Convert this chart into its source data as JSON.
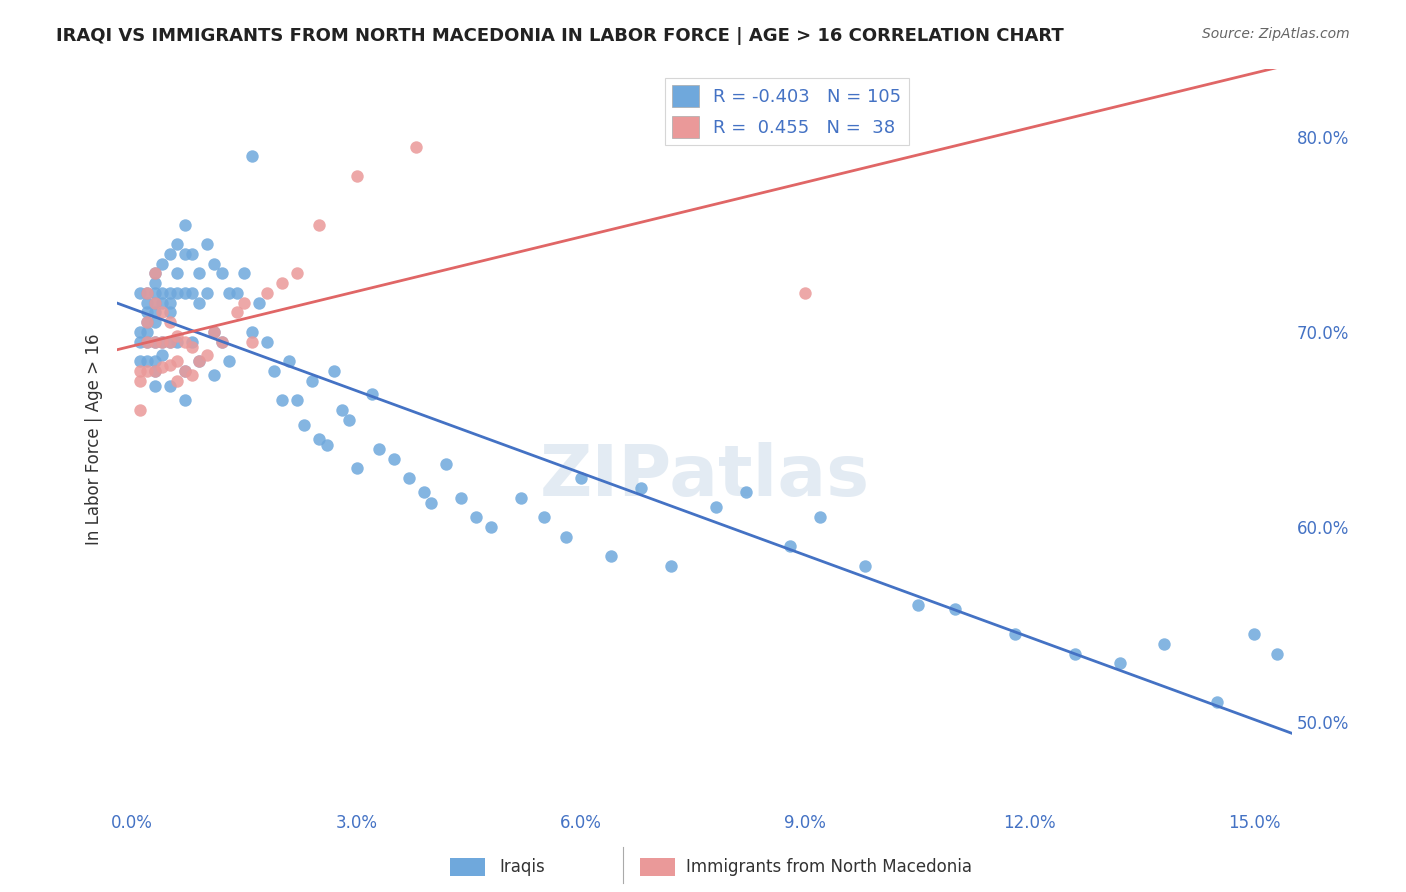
{
  "title": "IRAQI VS IMMIGRANTS FROM NORTH MACEDONIA IN LABOR FORCE | AGE > 16 CORRELATION CHART",
  "source": "Source: ZipAtlas.com",
  "xlabel_ticks": [
    "0.0%",
    "3.0%",
    "6.0%",
    "9.0%",
    "12.0%",
    "15.0%"
  ],
  "xlabel_vals": [
    0.0,
    0.03,
    0.06,
    0.09,
    0.12,
    0.15
  ],
  "ylabel_ticks": [
    "50.0%",
    "60.0%",
    "70.0%",
    "80.0%"
  ],
  "ylabel_vals": [
    0.5,
    0.6,
    0.7,
    0.8
  ],
  "ylabel_label": "In Labor Force | Age > 16",
  "xlim": [
    -0.002,
    0.155
  ],
  "ylim": [
    0.455,
    0.835
  ],
  "legend_iraqis_r": "-0.403",
  "legend_iraqis_n": "105",
  "legend_macedonians_r": "0.455",
  "legend_macedonians_n": "38",
  "iraqis_color": "#6fa8dc",
  "macedonians_color": "#ea9999",
  "iraqis_line_color": "#4472c4",
  "macedonians_line_color": "#e06666",
  "watermark": "ZIPatlas",
  "iraqis_x": [
    0.001,
    0.001,
    0.001,
    0.001,
    0.002,
    0.002,
    0.002,
    0.002,
    0.002,
    0.002,
    0.002,
    0.003,
    0.003,
    0.003,
    0.003,
    0.003,
    0.003,
    0.003,
    0.003,
    0.003,
    0.003,
    0.004,
    0.004,
    0.004,
    0.004,
    0.004,
    0.005,
    0.005,
    0.005,
    0.005,
    0.005,
    0.005,
    0.006,
    0.006,
    0.006,
    0.006,
    0.007,
    0.007,
    0.007,
    0.007,
    0.007,
    0.008,
    0.008,
    0.008,
    0.009,
    0.009,
    0.009,
    0.01,
    0.01,
    0.011,
    0.011,
    0.011,
    0.012,
    0.012,
    0.013,
    0.013,
    0.014,
    0.015,
    0.016,
    0.016,
    0.017,
    0.018,
    0.019,
    0.02,
    0.021,
    0.022,
    0.023,
    0.024,
    0.025,
    0.026,
    0.027,
    0.028,
    0.029,
    0.03,
    0.032,
    0.033,
    0.035,
    0.037,
    0.039,
    0.04,
    0.042,
    0.044,
    0.046,
    0.048,
    0.052,
    0.055,
    0.058,
    0.06,
    0.064,
    0.068,
    0.072,
    0.078,
    0.082,
    0.088,
    0.092,
    0.098,
    0.105,
    0.11,
    0.118,
    0.126,
    0.132,
    0.138,
    0.145,
    0.15,
    0.153
  ],
  "iraqis_y": [
    0.72,
    0.7,
    0.695,
    0.685,
    0.72,
    0.715,
    0.71,
    0.705,
    0.7,
    0.695,
    0.685,
    0.73,
    0.725,
    0.72,
    0.715,
    0.71,
    0.705,
    0.695,
    0.685,
    0.68,
    0.672,
    0.735,
    0.72,
    0.715,
    0.695,
    0.688,
    0.74,
    0.72,
    0.715,
    0.71,
    0.695,
    0.672,
    0.745,
    0.73,
    0.72,
    0.695,
    0.755,
    0.74,
    0.72,
    0.68,
    0.665,
    0.74,
    0.72,
    0.695,
    0.73,
    0.715,
    0.685,
    0.745,
    0.72,
    0.735,
    0.7,
    0.678,
    0.73,
    0.695,
    0.72,
    0.685,
    0.72,
    0.73,
    0.79,
    0.7,
    0.715,
    0.695,
    0.68,
    0.665,
    0.685,
    0.665,
    0.652,
    0.675,
    0.645,
    0.642,
    0.68,
    0.66,
    0.655,
    0.63,
    0.668,
    0.64,
    0.635,
    0.625,
    0.618,
    0.612,
    0.632,
    0.615,
    0.605,
    0.6,
    0.615,
    0.605,
    0.595,
    0.625,
    0.585,
    0.62,
    0.58,
    0.61,
    0.618,
    0.59,
    0.605,
    0.58,
    0.56,
    0.558,
    0.545,
    0.535,
    0.53,
    0.54,
    0.51,
    0.545,
    0.535
  ],
  "macedonians_x": [
    0.001,
    0.001,
    0.001,
    0.002,
    0.002,
    0.002,
    0.002,
    0.003,
    0.003,
    0.003,
    0.003,
    0.004,
    0.004,
    0.004,
    0.005,
    0.005,
    0.005,
    0.006,
    0.006,
    0.006,
    0.007,
    0.007,
    0.008,
    0.008,
    0.009,
    0.01,
    0.011,
    0.012,
    0.014,
    0.015,
    0.016,
    0.018,
    0.02,
    0.022,
    0.025,
    0.03,
    0.038,
    0.09
  ],
  "macedonians_y": [
    0.68,
    0.675,
    0.66,
    0.72,
    0.705,
    0.695,
    0.68,
    0.73,
    0.715,
    0.695,
    0.68,
    0.71,
    0.695,
    0.682,
    0.705,
    0.695,
    0.683,
    0.698,
    0.685,
    0.675,
    0.695,
    0.68,
    0.692,
    0.678,
    0.685,
    0.688,
    0.7,
    0.695,
    0.71,
    0.715,
    0.695,
    0.72,
    0.725,
    0.73,
    0.755,
    0.78,
    0.795,
    0.72
  ]
}
